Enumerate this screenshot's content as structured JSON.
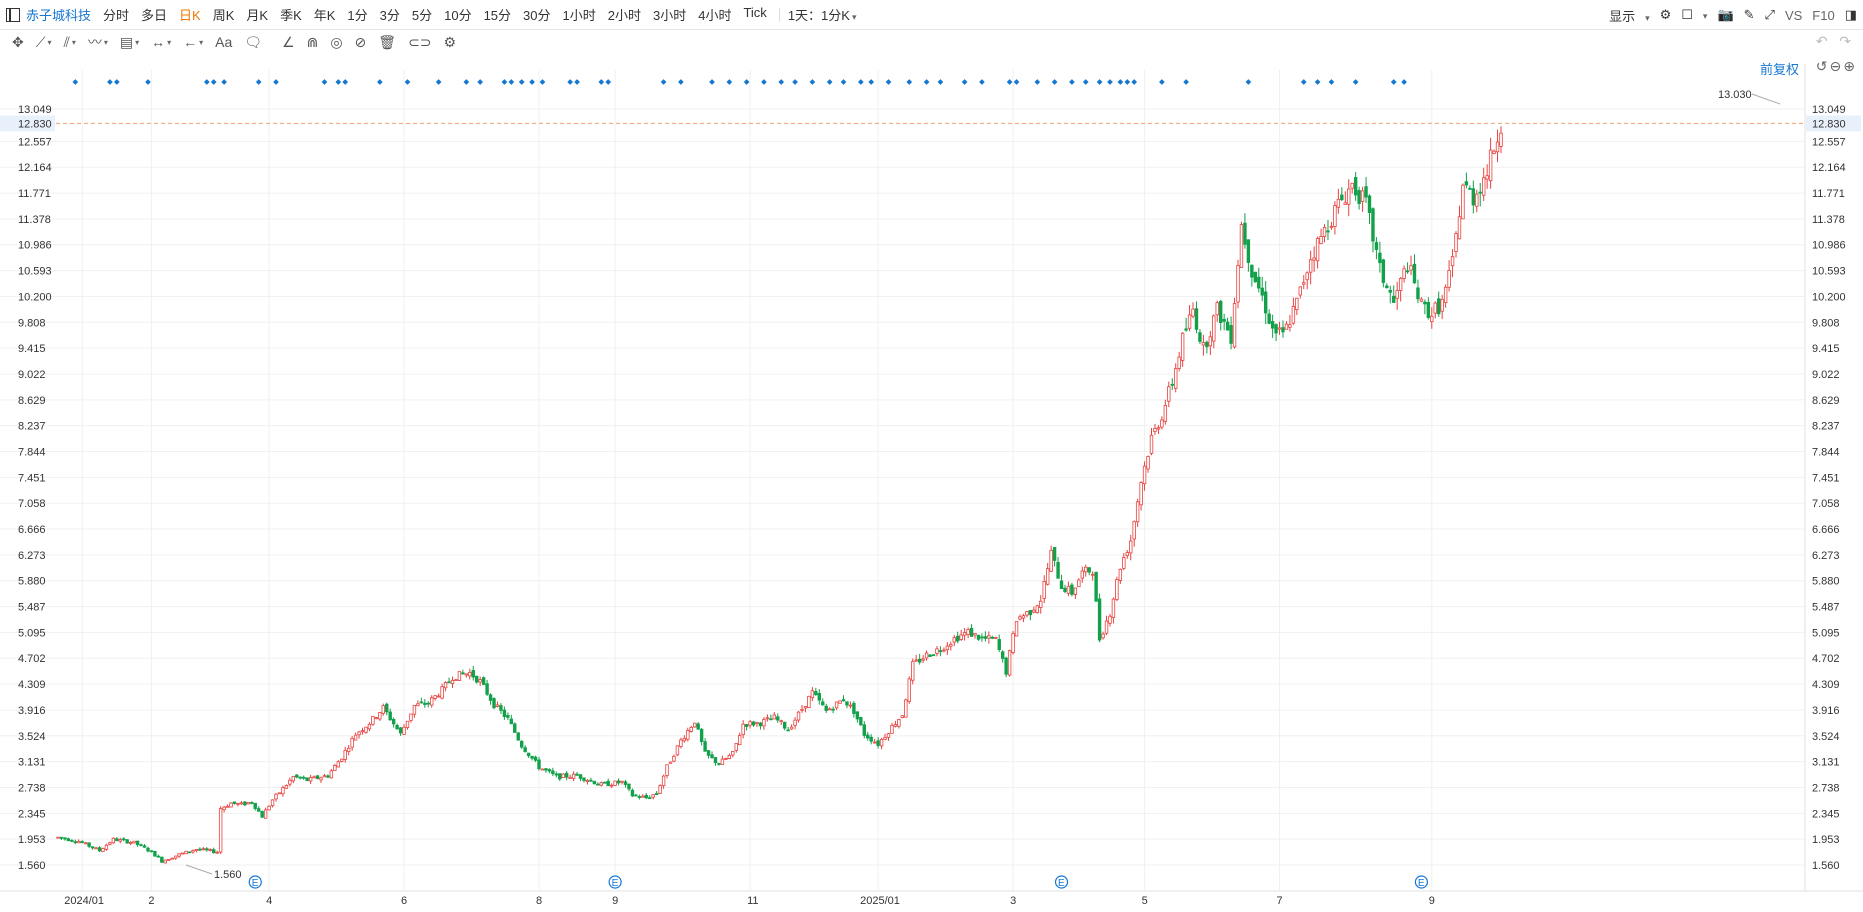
{
  "topbar": {
    "stock_name": "赤子城科技",
    "periods": [
      "分时",
      "多日",
      "日K",
      "周K",
      "月K",
      "季K",
      "年K",
      "1分",
      "3分",
      "5分",
      "10分",
      "15分",
      "30分",
      "1小时",
      "2小时",
      "3小时",
      "4小时",
      "Tick"
    ],
    "active_period": "日K",
    "range_selector": "1天：1分K",
    "display_label": "显示",
    "vs_label": "VS",
    "f10_label": "F10"
  },
  "chart_toolbar": {
    "text_tool_label": "Aa"
  },
  "price_adjust_label": "前复权",
  "colors": {
    "up": "#e8413e",
    "down": "#12a14b",
    "marker": "#1677d2",
    "price_line": "#f0a070"
  },
  "chart_data": {
    "type": "candlestick",
    "y_ticks": [
      13.049,
      12.557,
      12.164,
      11.771,
      11.378,
      10.986,
      10.593,
      10.2,
      9.808,
      9.415,
      9.022,
      8.629,
      8.237,
      7.844,
      7.451,
      7.058,
      6.666,
      6.273,
      5.88,
      5.487,
      5.095,
      4.702,
      4.309,
      3.916,
      3.524,
      3.131,
      2.738,
      2.345,
      1.953,
      1.56
    ],
    "y_tick_labels": [
      "13.049",
      "12.557",
      "12.164",
      "11.771",
      "11.378",
      "10.986",
      "10.593",
      "10.200",
      "9.808",
      "9.415",
      "9.022",
      "8.629",
      "8.237",
      "7.844",
      "7.451",
      "7.058",
      "6.666",
      "6.273",
      "5.880",
      "5.487",
      "5.095",
      "4.702",
      "4.309",
      "3.916",
      "3.524",
      "3.131",
      "2.738",
      "2.345",
      "1.953",
      "1.560"
    ],
    "x_ticks": [
      {
        "label": "2024/01",
        "index": 7
      },
      {
        "label": "2",
        "index": 27
      },
      {
        "label": "4",
        "index": 61
      },
      {
        "label": "6",
        "index": 100
      },
      {
        "label": "8",
        "index": 139
      },
      {
        "label": "9",
        "index": 161
      },
      {
        "label": "11",
        "index": 200
      },
      {
        "label": "2025/01",
        "index": 237
      },
      {
        "label": "3",
        "index": 276
      },
      {
        "label": "5",
        "index": 314
      },
      {
        "label": "7",
        "index": 353
      },
      {
        "label": "9",
        "index": 397
      }
    ],
    "current_price": 12.83,
    "current_price_label": "12.830",
    "max_label": "13.030",
    "min_label": "1.560",
    "event_marker_label": "E",
    "event_marker_indices": [
      57,
      161,
      290,
      394
    ],
    "signal_marker_indices": [
      5,
      15,
      17,
      26,
      43,
      45,
      48,
      58,
      63,
      77,
      81,
      83,
      93,
      101,
      110,
      118,
      122,
      129,
      131,
      134,
      137,
      140,
      148,
      150,
      157,
      159,
      175,
      180,
      189,
      194,
      199,
      204,
      209,
      213,
      218,
      223,
      227,
      232,
      235,
      240,
      246,
      251,
      255,
      262,
      267,
      275,
      277,
      283,
      288,
      293,
      297,
      301,
      304,
      307,
      309,
      311,
      319,
      326,
      344,
      360,
      364,
      368,
      375,
      386,
      389
    ],
    "keypoints": [
      [
        0,
        1.98
      ],
      [
        6,
        1.92
      ],
      [
        12,
        1.78
      ],
      [
        16,
        1.95
      ],
      [
        22,
        1.9
      ],
      [
        27,
        1.76
      ],
      [
        30,
        1.62
      ],
      [
        35,
        1.72
      ],
      [
        40,
        1.8
      ],
      [
        46,
        1.76
      ],
      [
        47,
        2.42
      ],
      [
        50,
        2.5
      ],
      [
        53,
        2.48
      ],
      [
        56,
        2.52
      ],
      [
        59,
        2.3
      ],
      [
        62,
        2.55
      ],
      [
        65,
        2.72
      ],
      [
        68,
        2.9
      ],
      [
        72,
        2.85
      ],
      [
        78,
        2.92
      ],
      [
        82,
        3.2
      ],
      [
        86,
        3.55
      ],
      [
        90,
        3.72
      ],
      [
        94,
        3.95
      ],
      [
        99,
        3.55
      ],
      [
        103,
        3.98
      ],
      [
        107,
        4.02
      ],
      [
        111,
        4.22
      ],
      [
        114,
        4.42
      ],
      [
        119,
        4.48
      ],
      [
        122,
        4.35
      ],
      [
        126,
        4.0
      ],
      [
        130,
        3.78
      ],
      [
        134,
        3.38
      ],
      [
        139,
        3.05
      ],
      [
        144,
        2.9
      ],
      [
        150,
        2.92
      ],
      [
        157,
        2.78
      ],
      [
        163,
        2.82
      ],
      [
        166,
        2.62
      ],
      [
        170,
        2.58
      ],
      [
        173,
        2.65
      ],
      [
        176,
        3.05
      ],
      [
        180,
        3.45
      ],
      [
        184,
        3.75
      ],
      [
        187,
        3.25
      ],
      [
        191,
        3.1
      ],
      [
        195,
        3.25
      ],
      [
        198,
        3.7
      ],
      [
        203,
        3.72
      ],
      [
        207,
        3.8
      ],
      [
        211,
        3.62
      ],
      [
        214,
        3.85
      ],
      [
        218,
        4.18
      ],
      [
        222,
        3.9
      ],
      [
        227,
        4.08
      ],
      [
        230,
        3.9
      ],
      [
        233,
        3.55
      ],
      [
        237,
        3.4
      ],
      [
        240,
        3.6
      ],
      [
        244,
        3.85
      ],
      [
        247,
        4.6
      ],
      [
        251,
        4.75
      ],
      [
        255,
        4.85
      ],
      [
        259,
        5.0
      ],
      [
        263,
        5.1
      ],
      [
        267,
        5.0
      ],
      [
        271,
        4.98
      ],
      [
        274,
        4.5
      ],
      [
        277,
        5.3
      ],
      [
        281,
        5.42
      ],
      [
        284,
        5.6
      ],
      [
        287,
        6.3
      ],
      [
        290,
        5.8
      ],
      [
        293,
        5.7
      ],
      [
        296,
        6.0
      ],
      [
        299,
        6.05
      ],
      [
        301,
        5.0
      ],
      [
        304,
        5.4
      ],
      [
        307,
        6.1
      ],
      [
        310,
        6.5
      ],
      [
        313,
        7.4
      ],
      [
        316,
        8.05
      ],
      [
        319,
        8.4
      ],
      [
        322,
        8.9
      ],
      [
        325,
        9.55
      ],
      [
        328,
        10.0
      ],
      [
        331,
        9.4
      ],
      [
        335,
        10.0
      ],
      [
        339,
        9.6
      ],
      [
        342,
        11.3
      ],
      [
        345,
        10.6
      ],
      [
        348,
        10.2
      ],
      [
        351,
        9.7
      ],
      [
        354,
        9.6
      ],
      [
        358,
        10.1
      ],
      [
        362,
        10.8
      ],
      [
        366,
        11.2
      ],
      [
        370,
        11.6
      ],
      [
        374,
        11.9
      ],
      [
        378,
        11.6
      ],
      [
        382,
        10.6
      ],
      [
        386,
        10.1
      ],
      [
        390,
        10.7
      ],
      [
        394,
        10.05
      ],
      [
        397,
        9.95
      ],
      [
        400,
        10.1
      ],
      [
        403,
        10.7
      ],
      [
        406,
        11.9
      ],
      [
        409,
        11.7
      ],
      [
        413,
        12.1
      ],
      [
        417,
        12.83
      ]
    ]
  }
}
